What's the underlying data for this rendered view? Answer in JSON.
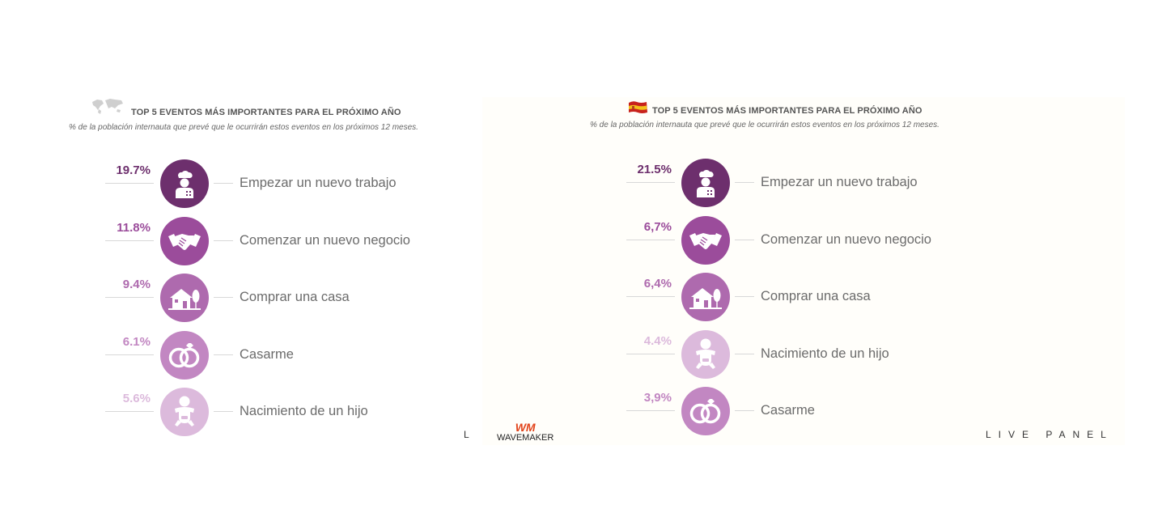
{
  "colors": {
    "level1": "#6d2f6d",
    "level2": "#9b4c9b",
    "level3": "#ae6aae",
    "level4": "#c287c2",
    "level5": "#dcbadc"
  },
  "panels": [
    {
      "flag": "world-map-icon",
      "title": "TOP 5 EVENTOS MÁS IMPORTANTES PARA EL PRÓXIMO AÑO",
      "subtitle": "% de la población internauta que prevé que le ocurrirán estos eventos en los próximos 12 meses.",
      "footer_text": "L I"
    },
    {
      "flag": "spain-flag-icon",
      "title": "TOP 5 EVENTOS MÁS IMPORTANTES PARA EL PRÓXIMO AÑO",
      "subtitle": "% de la población internauta que prevé que le ocurrirán estos eventos en los próximos 12 meses.",
      "footer_text": "LIVE PANEL"
    }
  ],
  "logo": {
    "mark": "WM",
    "name": "WAVEMAKER"
  },
  "chart_data": [
    {
      "type": "table",
      "title": "TOP 5 EVENTOS MÁS IMPORTANTES PARA EL PRÓXIMO AÑO",
      "subtitle": "% de la población internauta que prevé que le ocurrirán estos eventos en los próximos 12 meses.",
      "rows": [
        {
          "value": 19.7,
          "value_label": "19.7%",
          "label": "Empezar un nuevo trabajo",
          "icon": "chef-icon",
          "color": "#6d2f6d"
        },
        {
          "value": 11.8,
          "value_label": "11.8%",
          "label": "Comenzar un nuevo negocio",
          "icon": "handshake-icon",
          "color": "#9b4c9b"
        },
        {
          "value": 9.4,
          "value_label": "9.4%",
          "label": "Comprar una casa",
          "icon": "house-icon",
          "color": "#ae6aae"
        },
        {
          "value": 6.1,
          "value_label": "6.1%",
          "label": "Casarme",
          "icon": "rings-icon",
          "color": "#c287c2"
        },
        {
          "value": 5.6,
          "value_label": "5.6%",
          "label": "Nacimiento de un hijo",
          "icon": "baby-icon",
          "color": "#dcbadc"
        }
      ]
    },
    {
      "type": "table",
      "title": "TOP 5 EVENTOS MÁS IMPORTANTES PARA EL PRÓXIMO AÑO",
      "subtitle": "% de la población internauta que prevé que le ocurrirán estos eventos en los próximos 12 meses.",
      "rows": [
        {
          "value": 21.5,
          "value_label": "21.5%",
          "label": "Empezar un nuevo trabajo",
          "icon": "chef-icon",
          "color": "#6d2f6d"
        },
        {
          "value": 6.7,
          "value_label": "6,7%",
          "label": "Comenzar un nuevo negocio",
          "icon": "handshake-icon",
          "color": "#9b4c9b"
        },
        {
          "value": 6.4,
          "value_label": "6,4%",
          "label": "Comprar una casa",
          "icon": "house-icon",
          "color": "#ae6aae"
        },
        {
          "value": 4.4,
          "value_label": "4.4%",
          "label": "Nacimiento de un hijo",
          "icon": "baby-icon",
          "color": "#dcbadc"
        },
        {
          "value": 3.9,
          "value_label": "3,9%",
          "label": "Casarme",
          "icon": "rings-icon",
          "color": "#c287c2"
        }
      ]
    }
  ]
}
